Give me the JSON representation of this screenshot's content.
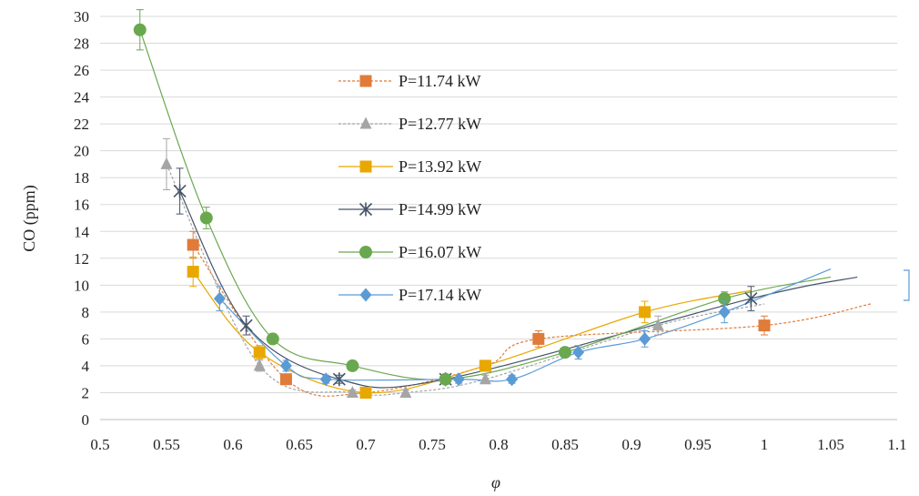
{
  "chart_data": {
    "type": "scatter",
    "xlabel": "φ",
    "ylabel": "CO (ppm)",
    "xlim": [
      0.5,
      1.1
    ],
    "ylim": [
      0,
      30
    ],
    "x_ticks": [
      "0.5",
      "0.55",
      "0.6",
      "0.65",
      "0.7",
      "0.75",
      "0.8",
      "0.85",
      "0.9",
      "0.95",
      "1",
      "1.05",
      "1.1"
    ],
    "y_ticks": [
      "0",
      "2",
      "4",
      "6",
      "8",
      "10",
      "12",
      "14",
      "16",
      "18",
      "20",
      "22",
      "24",
      "26",
      "28",
      "30"
    ],
    "grid": "horizontal",
    "legend_position": "inside-top-center",
    "series": [
      {
        "name": "P=11.74 kW",
        "color": "#e07b39",
        "marker": "square",
        "points": [
          [
            0.57,
            13
          ],
          [
            0.64,
            3
          ],
          [
            0.7,
            2
          ],
          [
            0.79,
            4
          ],
          [
            0.83,
            6
          ],
          [
            1.0,
            7
          ]
        ],
        "error": [
          1.0,
          0.3,
          0.3,
          0.4,
          0.6,
          0.7
        ]
      },
      {
        "name": "P=12.77 kW",
        "color": "#a5a5a5",
        "marker": "triangle",
        "points": [
          [
            0.55,
            19
          ],
          [
            0.62,
            4
          ],
          [
            0.69,
            2
          ],
          [
            0.73,
            2
          ],
          [
            0.79,
            3
          ],
          [
            0.92,
            7
          ]
        ],
        "error": [
          1.9,
          0.4,
          0.2,
          0.2,
          0.3,
          0.7
        ]
      },
      {
        "name": "P=13.92 kW",
        "color": "#e8a800",
        "marker": "square",
        "points": [
          [
            0.57,
            11
          ],
          [
            0.62,
            5
          ],
          [
            0.7,
            2
          ],
          [
            0.79,
            4
          ],
          [
            0.91,
            8
          ]
        ],
        "error": [
          1.1,
          0.5,
          0.2,
          0.4,
          0.8
        ]
      },
      {
        "name": "P=14.99 kW",
        "color": "#44546a",
        "marker": "x",
        "points": [
          [
            0.56,
            17
          ],
          [
            0.61,
            7
          ],
          [
            0.68,
            3
          ],
          [
            0.76,
            3
          ],
          [
            0.99,
            9
          ]
        ],
        "error": [
          1.7,
          0.7,
          0.3,
          0.3,
          0.9
        ]
      },
      {
        "name": "P=16.07 kW",
        "color": "#6aa84f",
        "marker": "circle",
        "points": [
          [
            0.53,
            29
          ],
          [
            0.58,
            15
          ],
          [
            0.63,
            6
          ],
          [
            0.69,
            4
          ],
          [
            0.76,
            3
          ],
          [
            0.85,
            5
          ],
          [
            0.97,
            9
          ]
        ],
        "error": [
          1.5,
          0.8,
          0.3,
          0.2,
          0.2,
          0.3,
          0.5
        ]
      },
      {
        "name": "P=17.14 kW",
        "color": "#5b9bd5",
        "marker": "diamond",
        "points": [
          [
            0.59,
            9
          ],
          [
            0.64,
            4
          ],
          [
            0.67,
            3
          ],
          [
            0.77,
            3
          ],
          [
            0.81,
            3
          ],
          [
            0.86,
            5
          ],
          [
            0.91,
            6
          ],
          [
            0.97,
            8
          ]
        ],
        "error": [
          0.9,
          0.4,
          0.3,
          0.3,
          0.3,
          0.5,
          0.6,
          0.8
        ]
      }
    ]
  }
}
